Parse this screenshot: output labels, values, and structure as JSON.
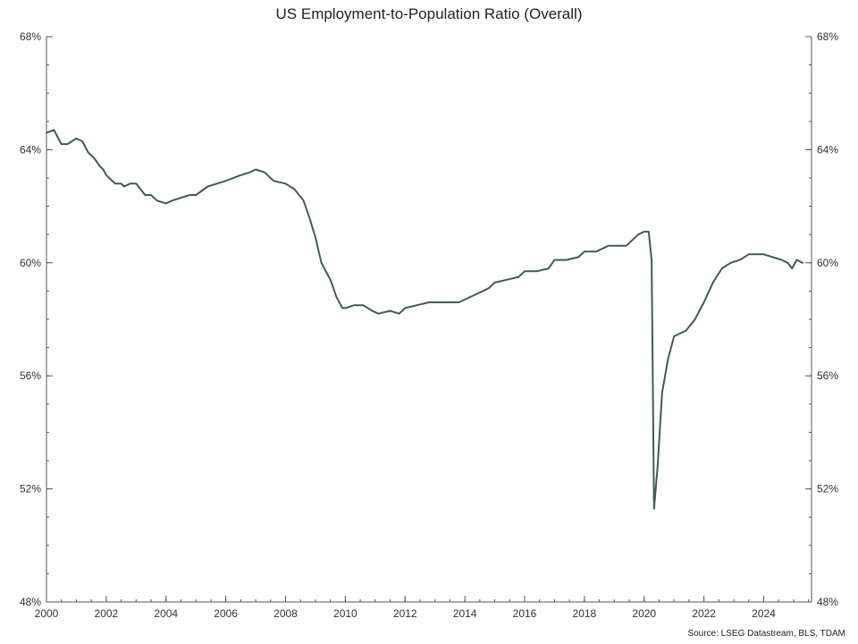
{
  "chart_data": {
    "type": "line",
    "title": "US Employment-to-Population Ratio (Overall)",
    "source": "Source: LSEG Datastream, BLS, TDAM",
    "line_color": "#3d5e50",
    "x_ticks": [
      "2000",
      "2002",
      "2004",
      "2006",
      "2008",
      "2010",
      "2012",
      "2014",
      "2016",
      "2018",
      "2020",
      "2022",
      "2024"
    ],
    "xlim": [
      2000,
      2025.6
    ],
    "ylim": [
      48,
      68
    ],
    "y_ticks": [
      48,
      52,
      56,
      60,
      64,
      68
    ],
    "y_tick_labels": [
      "48%",
      "52%",
      "56%",
      "60%",
      "64%",
      "68%"
    ],
    "y_minor_step": 1,
    "grid": false,
    "series": [
      {
        "x": [
          2000.0,
          2000.25,
          2000.35,
          2000.5,
          2000.7,
          2001.0,
          2001.2,
          2001.4,
          2001.6,
          2001.8,
          2001.9,
          2002.0,
          2002.3,
          2002.5,
          2002.6,
          2002.8,
          2003.0,
          2003.3,
          2003.5,
          2003.7,
          2004.0,
          2004.2,
          2004.5,
          2004.8,
          2005.0,
          2005.4,
          2005.7,
          2006.0,
          2006.5,
          2006.8,
          2007.0,
          2007.3,
          2007.6,
          2008.0,
          2008.3,
          2008.6,
          2008.8,
          2009.0,
          2009.2,
          2009.5,
          2009.7,
          2009.9,
          2010.0,
          2010.3,
          2010.6,
          2010.9,
          2011.1,
          2011.5,
          2011.8,
          2012.0,
          2012.4,
          2012.8,
          2013.0,
          2013.4,
          2013.8,
          2014.0,
          2014.4,
          2014.8,
          2015.0,
          2015.4,
          2015.8,
          2016.0,
          2016.4,
          2016.8,
          2017.0,
          2017.4,
          2017.8,
          2018.0,
          2018.4,
          2018.8,
          2019.0,
          2019.4,
          2019.8,
          2020.0,
          2020.15,
          2020.25,
          2020.33,
          2020.45,
          2020.6,
          2020.8,
          2021.0,
          2021.4,
          2021.7,
          2022.0,
          2022.3,
          2022.6,
          2022.9,
          2023.2,
          2023.5,
          2023.8,
          2024.0,
          2024.3,
          2024.6,
          2024.8,
          2024.95,
          2025.1,
          2025.3
        ],
        "y": [
          64.6,
          64.7,
          64.5,
          64.2,
          64.2,
          64.4,
          64.3,
          63.9,
          63.7,
          63.4,
          63.3,
          63.1,
          62.8,
          62.8,
          62.7,
          62.8,
          62.8,
          62.4,
          62.4,
          62.2,
          62.1,
          62.2,
          62.3,
          62.4,
          62.4,
          62.7,
          62.8,
          62.9,
          63.1,
          63.2,
          63.3,
          63.2,
          62.9,
          62.8,
          62.6,
          62.2,
          61.6,
          60.9,
          60.0,
          59.4,
          58.8,
          58.4,
          58.4,
          58.5,
          58.5,
          58.3,
          58.2,
          58.3,
          58.2,
          58.4,
          58.5,
          58.6,
          58.6,
          58.6,
          58.6,
          58.7,
          58.9,
          59.1,
          59.3,
          59.4,
          59.5,
          59.7,
          59.7,
          59.8,
          60.1,
          60.1,
          60.2,
          60.4,
          60.4,
          60.6,
          60.6,
          60.6,
          61.0,
          61.1,
          61.1,
          60.1,
          51.3,
          52.8,
          55.4,
          56.6,
          57.4,
          57.6,
          58.0,
          58.6,
          59.3,
          59.8,
          60.0,
          60.1,
          60.3,
          60.3,
          60.3,
          60.2,
          60.1,
          60.0,
          59.8,
          60.1,
          60.0
        ]
      }
    ]
  }
}
